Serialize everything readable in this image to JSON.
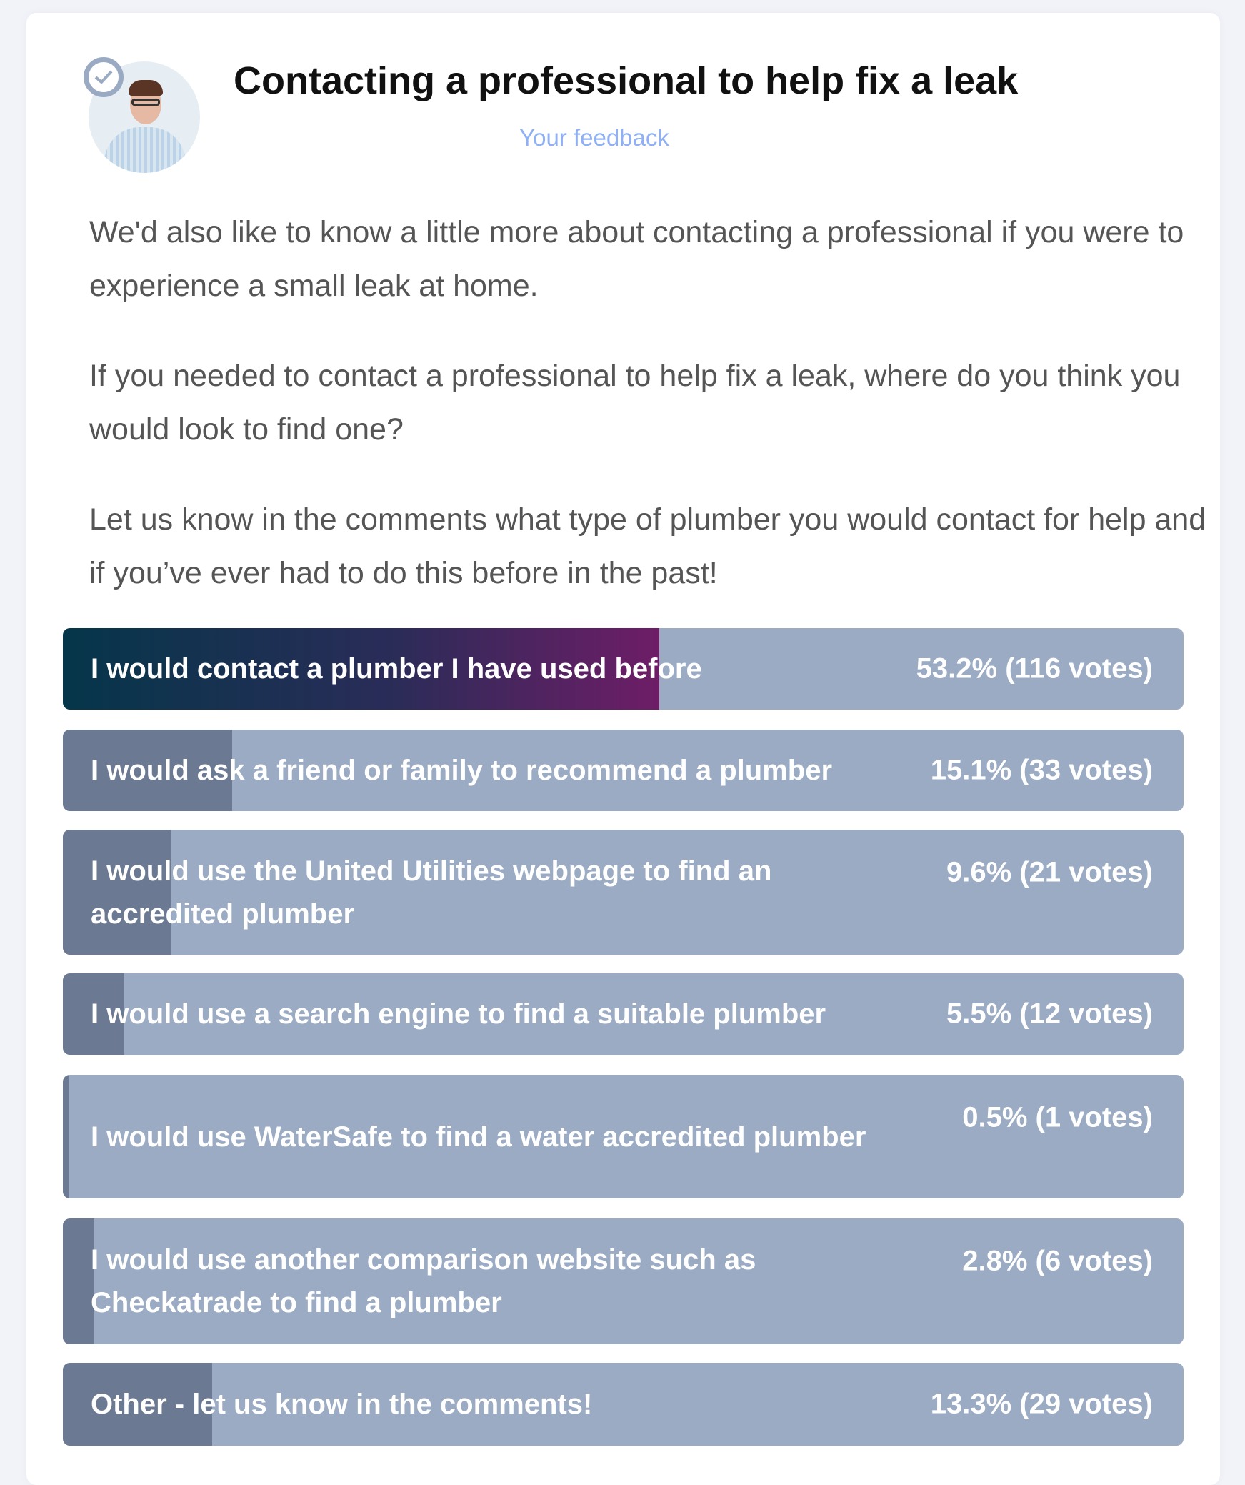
{
  "header": {
    "title": "Contacting a professional to help fix a leak",
    "subtitle_link": "Your feedback",
    "avatar_icon": "person-photo",
    "badge_icon": "check-shield-icon"
  },
  "body": {
    "paragraphs": [
      "We'd also like to know a little more about contacting a professional if you were to experience a small leak at home.",
      "If you needed to contact a professional to help fix a leak, where do you think you would look to find one?",
      "Let us know in the comments what type of plumber you would contact for help and if you’ve ever had to do this before in the past!"
    ]
  },
  "poll": {
    "colors": {
      "track": "#9aabc3",
      "fill": "#6b7a92",
      "leader_gradient": [
        "#05364a",
        "#6e1d66"
      ]
    },
    "options": [
      {
        "label": "I would contact a plumber I have used before",
        "percent": 53.2,
        "result": "53.2% (116 votes)"
      },
      {
        "label": "I would ask a friend or family to recommend a plumber",
        "percent": 15.1,
        "result": "15.1% (33 votes)"
      },
      {
        "label": "I would use the United Utilities webpage to find an accredited plumber",
        "percent": 9.6,
        "result": "9.6% (21 votes)"
      },
      {
        "label": "I would use a search engine to find a suitable plumber",
        "percent": 5.5,
        "result": "5.5% (12 votes)"
      },
      {
        "label": "I would use WaterSafe to find a water accredited plumber",
        "percent": 0.5,
        "result": "0.5% (1 votes)"
      },
      {
        "label": "I would use another comparison website such as Checkatrade to find a plumber",
        "percent": 2.8,
        "result": "2.8% (6 votes)"
      },
      {
        "label": "Other - let us know in the comments!",
        "percent": 13.3,
        "result": "13.3% (29 votes)"
      }
    ]
  }
}
